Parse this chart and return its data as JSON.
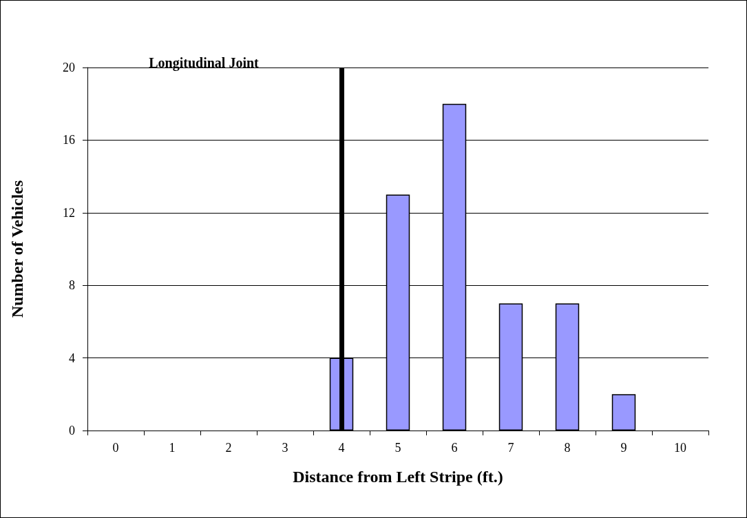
{
  "chart_data": {
    "type": "bar",
    "xlabel": "Distance from Left Stripe (ft.)",
    "ylabel": "Number of Vehicles",
    "categories": [
      "0",
      "1",
      "2",
      "3",
      "4",
      "5",
      "6",
      "7",
      "8",
      "9",
      "10"
    ],
    "values": [
      0,
      0,
      0,
      0,
      4,
      13,
      18,
      7,
      7,
      2,
      0
    ],
    "color": "#9999ff",
    "ylim": [
      0,
      20
    ],
    "yticks": [
      0,
      4,
      8,
      12,
      16,
      20
    ],
    "grid": "y",
    "ref_lines": [
      {
        "axis": "x",
        "value": "4",
        "label": "Longitudinal Joint",
        "color": "#000000"
      }
    ]
  }
}
